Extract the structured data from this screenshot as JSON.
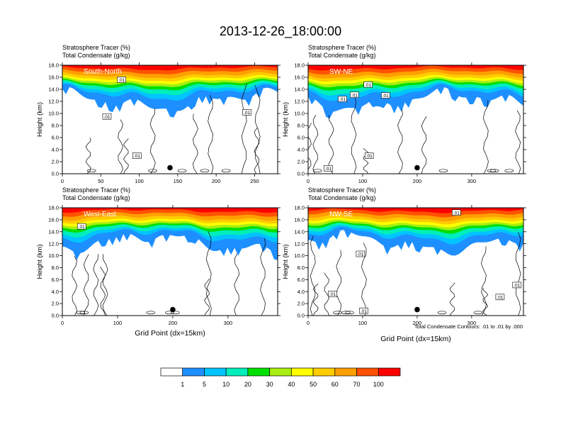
{
  "figure": {
    "title": "2013-12-26_18:00:00",
    "footnote": "Total Condensate Contours: .01 to .01 by .000"
  },
  "colorbar": {
    "colors": [
      "#ffffff",
      "#1e8fff",
      "#00c4ff",
      "#00eebb",
      "#00e000",
      "#a8ee10",
      "#ffff00",
      "#ffcc00",
      "#ff9f00",
      "#ff5200",
      "#ff0000"
    ],
    "labels": [
      "1",
      "5",
      "10",
      "20",
      "30",
      "40",
      "50",
      "60",
      "70",
      "100"
    ]
  },
  "chart_data": [
    {
      "type": "heatmap",
      "panel": "South-North",
      "header_line1": "Stratosphere Tracer   (%)",
      "header_line2": "Total Condensate   (g/kg)",
      "ylabel": "Height (km)",
      "xlabel": "",
      "xlim": [
        0,
        280
      ],
      "ylim": [
        0,
        18
      ],
      "xticks": [
        "0",
        "50",
        "100",
        "150",
        "200",
        "250"
      ],
      "xtick_values": [
        0,
        50,
        100,
        150,
        200,
        250
      ],
      "yticks": [
        "0.0",
        "2.0",
        "4.0",
        "6.0",
        "8.0",
        "10.0",
        "12.0",
        "14.0",
        "16.0",
        "18.0"
      ],
      "marker": {
        "x": 140,
        "y": 1.0
      },
      "contour_labels": [
        {
          "text": ".01",
          "x": 77,
          "y": 15.6
        },
        {
          "text": ".01",
          "x": 58,
          "y": 9.5
        },
        {
          "text": ".01",
          "x": 240,
          "y": 10.2
        },
        {
          "text": ".01",
          "x": 97,
          "y": 3.0
        }
      ]
    },
    {
      "type": "heatmap",
      "panel": "SW-NE",
      "header_line1": "Stratosphere Tracer   (%)",
      "header_line2": "Total Condensate   (g/kg)",
      "ylabel": "Height (km)",
      "xlabel": "",
      "xlim": [
        0,
        395
      ],
      "ylim": [
        0,
        18
      ],
      "xticks": [
        "0",
        "100",
        "200",
        "300"
      ],
      "xtick_values": [
        0,
        100,
        200,
        300
      ],
      "yticks": [
        "0.0",
        "2.0",
        "4.0",
        "6.0",
        "8.0",
        "10.0",
        "12.0",
        "14.0",
        "16.0",
        "18.0"
      ],
      "marker": {
        "x": 200,
        "y": 1.0
      },
      "contour_labels": [
        {
          "text": ".01",
          "x": 110,
          "y": 14.8
        },
        {
          "text": ".01",
          "x": 85,
          "y": 13.1
        },
        {
          "text": ".01",
          "x": 63,
          "y": 12.4
        },
        {
          "text": ".01",
          "x": 142,
          "y": 13.0
        },
        {
          "text": ".01",
          "x": 112,
          "y": 3.0
        },
        {
          "text": ".01",
          "x": 37,
          "y": 0.9
        }
      ]
    },
    {
      "type": "heatmap",
      "panel": "West-East",
      "header_line1": "Stratosphere Tracer   (%)",
      "header_line2": "Total Condensate   (g/kg)",
      "ylabel": "Height (km)",
      "xlabel": "Grid Point (dx=15km)",
      "xlim": [
        0,
        390
      ],
      "ylim": [
        0,
        18
      ],
      "xticks": [
        "0",
        "100",
        "200",
        "300"
      ],
      "xtick_values": [
        0,
        100,
        200,
        300
      ],
      "yticks": [
        "0.0",
        "2.0",
        "4.0",
        "6.0",
        "8.0",
        "10.0",
        "12.0",
        "14.0",
        "16.0",
        "18.0"
      ],
      "marker": {
        "x": 200,
        "y": 1.0
      },
      "contour_labels": [
        {
          "text": ".01",
          "x": 35,
          "y": 14.9
        }
      ]
    },
    {
      "type": "heatmap",
      "panel": "NW-SE",
      "header_line1": "Stratosphere Tracer   (%)",
      "header_line2": "Total Condensate   (g/kg)",
      "ylabel": "Height (km)",
      "xlabel": "Grid Point (dx=15km)",
      "xlim": [
        0,
        395
      ],
      "ylim": [
        0,
        18
      ],
      "xticks": [
        "0",
        "100",
        "200",
        "300"
      ],
      "xtick_values": [
        0,
        100,
        200,
        300
      ],
      "yticks": [
        "0.0",
        "2.0",
        "4.0",
        "6.0",
        "8.0",
        "10.0",
        "12.0",
        "14.0",
        "16.0",
        "18.0"
      ],
      "marker": {
        "x": 200,
        "y": 1.0
      },
      "contour_labels": [
        {
          "text": ".01",
          "x": 272,
          "y": 17.2
        },
        {
          "text": ".01",
          "x": 96,
          "y": 10.3
        },
        {
          "text": ".01",
          "x": 45,
          "y": 3.6
        },
        {
          "text": ".01",
          "x": 352,
          "y": 3.1
        },
        {
          "text": ".01",
          "x": 383,
          "y": 5.1
        },
        {
          "text": ".01",
          "x": 102,
          "y": 0.8
        }
      ]
    }
  ]
}
